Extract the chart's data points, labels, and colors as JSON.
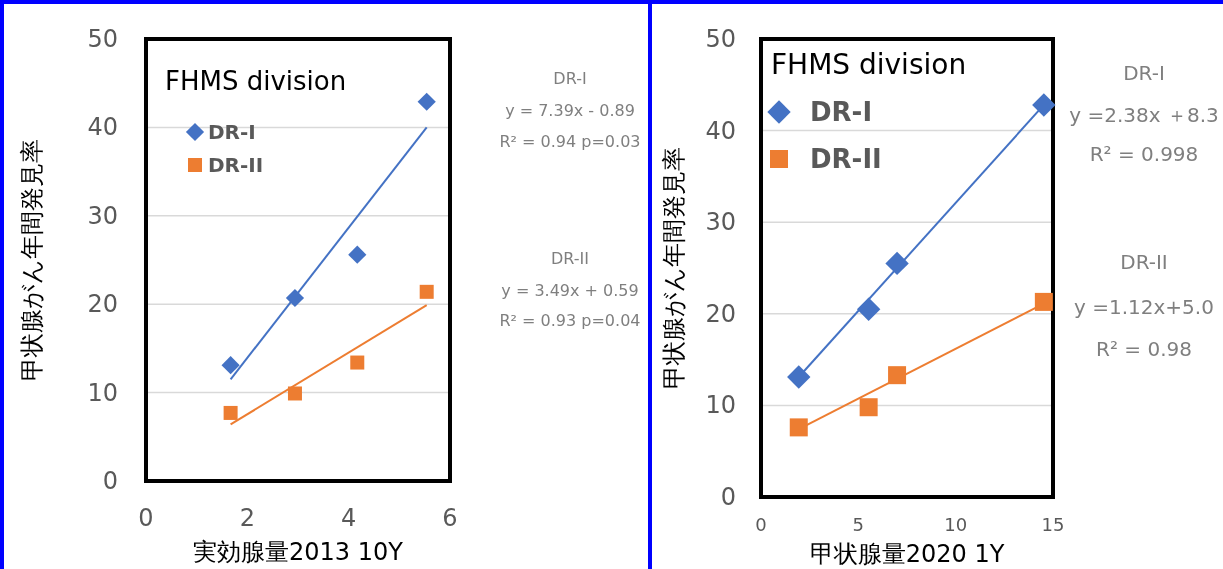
{
  "chart_data": [
    {
      "type": "scatter",
      "legend_title": "FHMS division",
      "xlabel": "実効腺量2013 10Y",
      "ylabel": "甲状腺がん年間発見率",
      "xlim": [
        0,
        6
      ],
      "xticks": [
        0,
        2,
        4,
        6
      ],
      "ylim": [
        0,
        50
      ],
      "yticks": [
        0,
        10,
        20,
        30,
        40,
        50
      ],
      "grid": "y",
      "legend": "top left",
      "annotations": [
        "DR-I",
        "y = 7.39x - 0.89",
        "R² = 0.94 p=0.03",
        "DR-II",
        "y = 3.49x + 0.59",
        "R² = 0.93 p=0.04"
      ],
      "series": [
        {
          "name": "DR-I",
          "color": "#4472c4",
          "marker": "diamond",
          "x": [
            1.67,
            2.94,
            4.17,
            5.54
          ],
          "values": [
            13.1,
            20.7,
            25.6,
            42.9
          ]
        },
        {
          "name": "DR-II",
          "color": "#ed7d31",
          "marker": "square",
          "x": [
            1.67,
            2.94,
            4.17,
            5.54
          ],
          "values": [
            7.7,
            9.9,
            13.4,
            21.4
          ]
        },
        {
          "type": "line",
          "color": "#4472c4",
          "marker": "none",
          "x": [
            1.67,
            5.54
          ],
          "values": [
            11.5,
            40.0
          ]
        },
        {
          "type": "line",
          "color": "#ed7d31",
          "marker": "none",
          "x": [
            1.67,
            5.54
          ],
          "values": [
            6.4,
            19.9
          ]
        }
      ]
    },
    {
      "type": "scatter",
      "legend_title": "FHMS division",
      "xlabel": "甲状腺量2020 1Y",
      "ylabel": "甲状腺がん年間発見率",
      "xlim": [
        0,
        15
      ],
      "xticks": [
        0,
        5,
        10,
        15
      ],
      "ylim": [
        0,
        50
      ],
      "yticks": [
        0,
        10,
        20,
        30,
        40,
        50
      ],
      "grid": "y",
      "legend": "top left",
      "annotations": [
        "DR-I",
        "y =2.38x ＋8.3",
        "R² = 0.998",
        "DR-II",
        "y =1.12x+5.0",
        "R² = 0.98"
      ],
      "series": [
        {
          "name": "DR-I",
          "color": "#4472c4",
          "marker": "diamond",
          "x": [
            1.94,
            5.53,
            6.99,
            14.53
          ],
          "values": [
            13.1,
            20.5,
            25.5,
            42.8
          ]
        },
        {
          "name": "DR-II",
          "color": "#ed7d31",
          "marker": "square",
          "x": [
            1.94,
            5.53,
            6.99,
            14.53
          ],
          "values": [
            7.6,
            9.8,
            13.3,
            21.3
          ]
        },
        {
          "type": "line",
          "color": "#4472c4",
          "marker": "none",
          "x": [
            1.94,
            14.53
          ],
          "values": [
            13.1,
            42.8
          ]
        },
        {
          "type": "line",
          "color": "#ed7d31",
          "marker": "none",
          "x": [
            1.94,
            14.53
          ],
          "values": [
            7.4,
            21.1
          ]
        }
      ]
    }
  ]
}
